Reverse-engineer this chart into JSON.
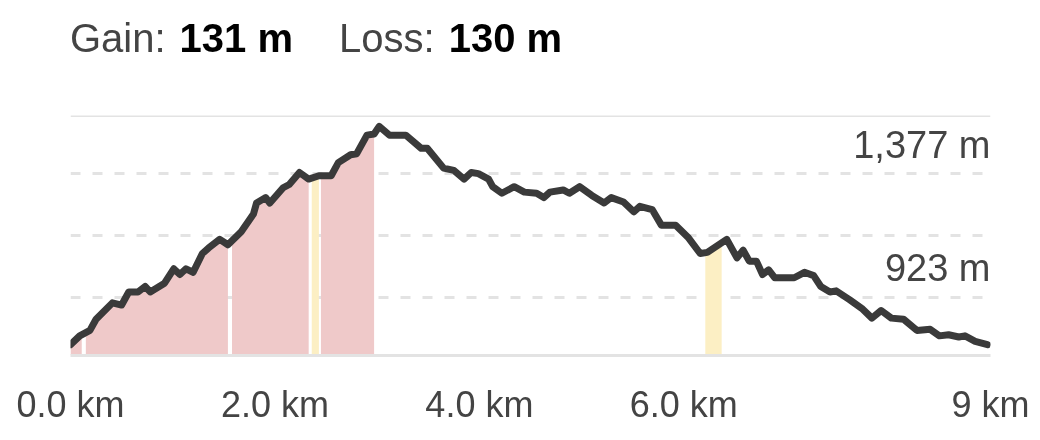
{
  "chart_data": {
    "type": "line",
    "annotations": [
      "Gain:",
      "131 m",
      "Loss:",
      "130 m"
    ],
    "xlim": [
      0,
      9
    ],
    "xticks": [
      {
        "value": 0,
        "label": "0.0 km"
      },
      {
        "value": 2,
        "label": "2.0 km"
      },
      {
        "value": 4,
        "label": "4.0 km"
      },
      {
        "value": 6,
        "label": "6.0 km"
      },
      {
        "value": 9,
        "label": "9 km"
      }
    ],
    "ylim": [
      710,
      1590
    ],
    "yticks": [
      {
        "value": 1377,
        "label": "1,377 m"
      },
      {
        "value": 1150,
        "label": null
      },
      {
        "value": 923,
        "label": "923 m"
      }
    ],
    "grid": "y",
    "series": [
      {
        "type": "area",
        "color": "#efc9c9",
        "x": [
          0,
          0.09,
          0.11
        ],
        "values": [
          750,
          782,
          790
        ]
      },
      {
        "type": "area",
        "color": "#efc9c9",
        "x": [
          0.15,
          0.19,
          0.25,
          0.41,
          0.5,
          0.57,
          0.66,
          0.73,
          0.78,
          0.92,
          1.01,
          1.07,
          1.13,
          1.2,
          1.29,
          1.35,
          1.46,
          1.54
        ],
        "values": [
          795,
          802,
          843,
          903,
          895,
          943,
          943,
          963,
          943,
          975,
          1028,
          1007,
          1028,
          1015,
          1084,
          1104,
          1136,
          1116
        ]
      },
      {
        "type": "area",
        "color": "#efc9c9",
        "x": [
          1.58,
          1.67,
          1.79,
          1.82,
          1.91,
          1.95,
          2.08,
          2.14,
          2.24,
          2.33
        ],
        "values": [
          1130,
          1164,
          1229,
          1269,
          1289,
          1269,
          1325,
          1337,
          1381,
          1357
        ]
      },
      {
        "type": "area",
        "color": "#fcefc4",
        "x": [
          2.36,
          2.43
        ],
        "values": [
          1360,
          1369
        ]
      },
      {
        "type": "area",
        "color": "#efc9c9",
        "x": [
          2.45,
          2.55,
          2.62,
          2.74,
          2.8,
          2.9,
          2.97
        ],
        "values": [
          1369,
          1369,
          1417,
          1446,
          1450,
          1518,
          1522
        ]
      },
      {
        "type": "area",
        "color": "#fcefc4",
        "x": [
          6.21,
          6.23,
          6.37
        ],
        "values": [
          1086,
          1088,
          1120
        ]
      },
      {
        "type": "line",
        "color": "#3a3a3a",
        "x": [
          0,
          0.09,
          0.19,
          0.25,
          0.41,
          0.5,
          0.57,
          0.66,
          0.73,
          0.78,
          0.92,
          1.01,
          1.07,
          1.13,
          1.2,
          1.29,
          1.35,
          1.46,
          1.54,
          1.67,
          1.79,
          1.82,
          1.91,
          1.95,
          2.08,
          2.14,
          2.24,
          2.33,
          2.43,
          2.55,
          2.62,
          2.74,
          2.8,
          2.9,
          2.97,
          3.02,
          3.12,
          3.28,
          3.43,
          3.49,
          3.65,
          3.75,
          3.85,
          3.92,
          3.99,
          4.09,
          4.13,
          4.22,
          4.34,
          4.44,
          4.56,
          4.63,
          4.69,
          4.82,
          4.88,
          4.98,
          5.1,
          5.22,
          5.29,
          5.41,
          5.51,
          5.57,
          5.69,
          5.78,
          5.92,
          6.04,
          6.16,
          6.23,
          6.42,
          6.52,
          6.58,
          6.64,
          6.71,
          6.77,
          6.83,
          6.89,
          7.08,
          7.18,
          7.27,
          7.34,
          7.43,
          7.49,
          7.62,
          7.74,
          7.84,
          7.93,
          8.03,
          8.15,
          8.28,
          8.41,
          8.5,
          8.59,
          8.69,
          8.75,
          8.85,
          8.97
        ],
        "values": [
          750,
          782,
          802,
          843,
          903,
          895,
          943,
          943,
          963,
          943,
          975,
          1028,
          1007,
          1028,
          1015,
          1084,
          1104,
          1136,
          1116,
          1164,
          1229,
          1269,
          1289,
          1269,
          1325,
          1337,
          1381,
          1357,
          1369,
          1369,
          1417,
          1446,
          1450,
          1518,
          1522,
          1550,
          1518,
          1518,
          1470,
          1470,
          1397,
          1389,
          1357,
          1381,
          1377,
          1357,
          1329,
          1305,
          1329,
          1309,
          1305,
          1289,
          1309,
          1317,
          1305,
          1329,
          1297,
          1269,
          1289,
          1273,
          1237,
          1257,
          1245,
          1188,
          1188,
          1144,
          1084,
          1088,
          1136,
          1068,
          1096,
          1056,
          1056,
          1007,
          1024,
          995,
          995,
          1015,
          1003,
          963,
          943,
          947,
          915,
          883,
          847,
          875,
          847,
          843,
          802,
          806,
          782,
          786,
          778,
          782,
          762,
          750
        ]
      }
    ]
  }
}
